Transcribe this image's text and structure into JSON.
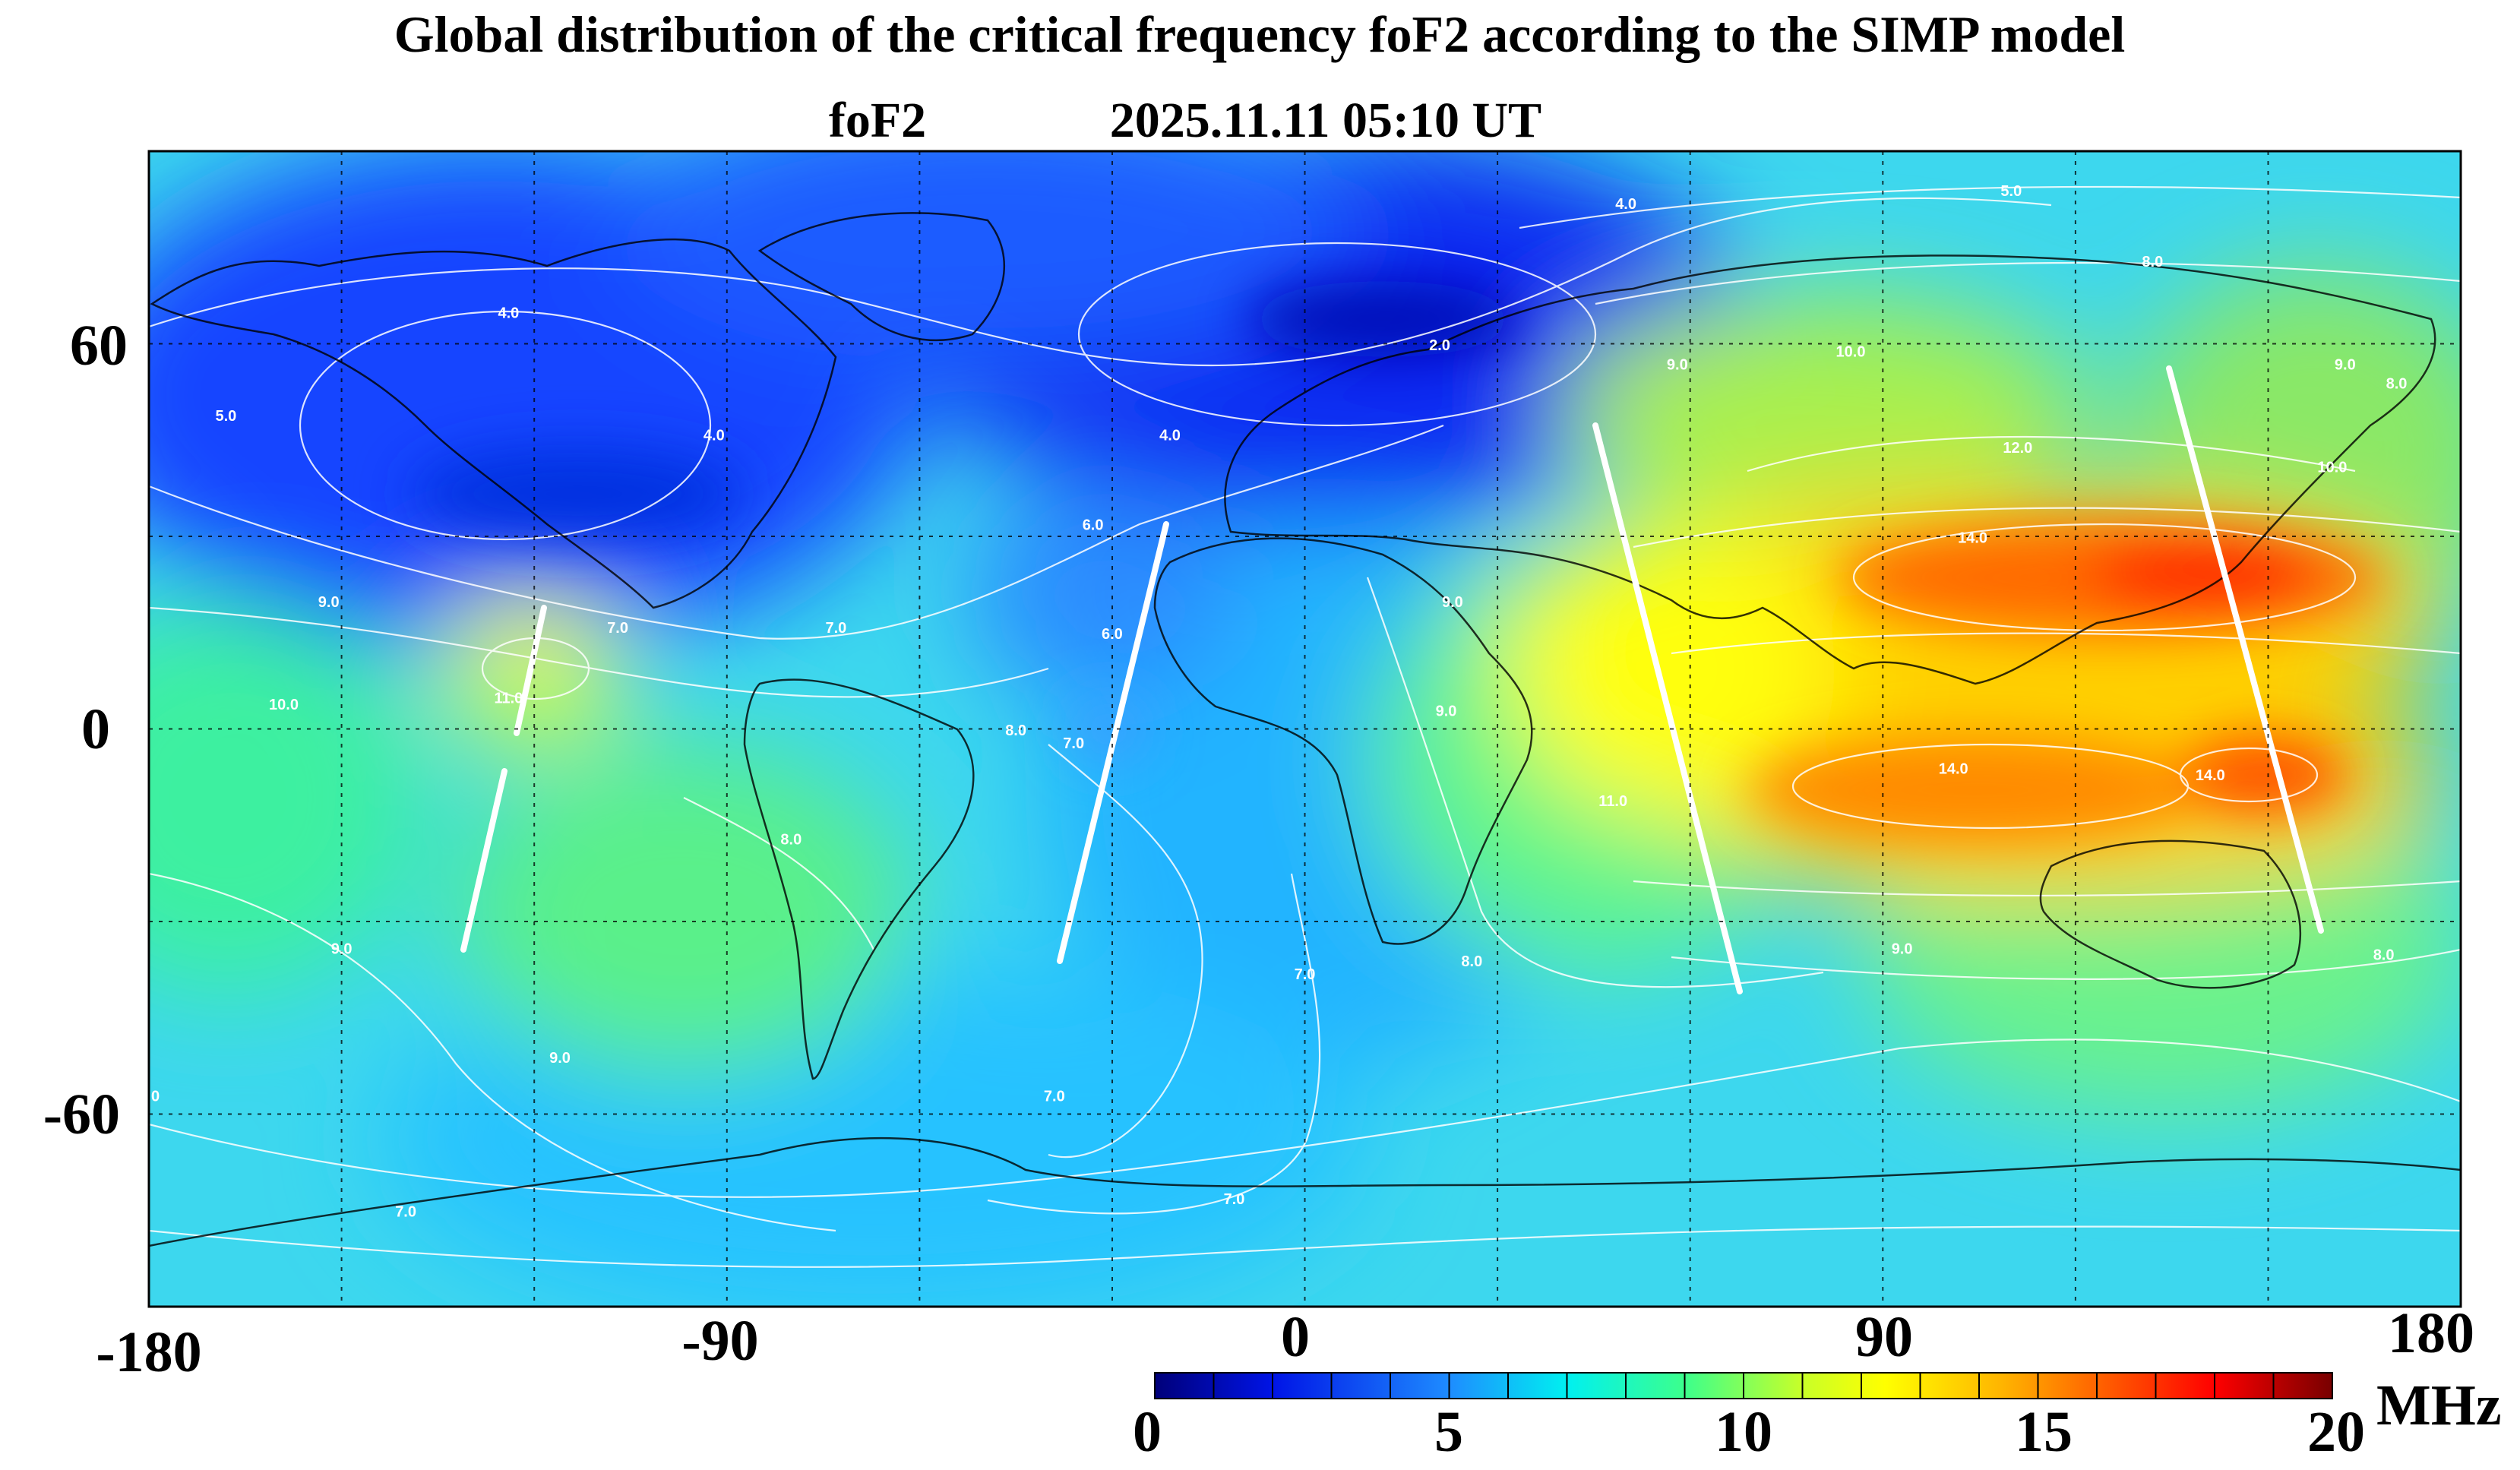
{
  "title": "Global distribution of the critical frequency foF2 according to the SIMP model",
  "subtitle_param": "foF2",
  "subtitle_time": "2025.11.11 05:10 UT",
  "x_axis": {
    "ticks": [
      "-180",
      "-90",
      "0",
      "90",
      "180"
    ],
    "min": -180,
    "max": 180
  },
  "y_axis": {
    "ticks": [
      "60",
      "0",
      "-60"
    ],
    "min": -90,
    "max": 90
  },
  "grid": true,
  "colorbar": {
    "min": 0,
    "max": 20,
    "ticks": [
      "0",
      "5",
      "10",
      "15",
      "20"
    ],
    "unit": "MHz",
    "colors": [
      "#00007a",
      "#0000c8",
      "#0a28f0",
      "#1e64ff",
      "#2896ff",
      "#14c8ff",
      "#00f0f0",
      "#28ff9c",
      "#78ff50",
      "#c8ff28",
      "#ffff00",
      "#ffd200",
      "#ffa000",
      "#ff6e00",
      "#ff3c00",
      "#ff0000",
      "#d20000",
      "#a00000",
      "#780000"
    ]
  },
  "contour_labels": [
    {
      "text": "4.0",
      "lon": -124,
      "lat": 64
    },
    {
      "text": "5.0",
      "lon": -168,
      "lat": 48
    },
    {
      "text": "4.0",
      "lon": -92,
      "lat": 45
    },
    {
      "text": "4.0",
      "lon": 50,
      "lat": 81
    },
    {
      "text": "5.0",
      "lon": 110,
      "lat": 83
    },
    {
      "text": "2.0",
      "lon": 21,
      "lat": 59
    },
    {
      "text": "4.0",
      "lon": -21,
      "lat": 45
    },
    {
      "text": "9.0",
      "lon": 58,
      "lat": 56
    },
    {
      "text": "10.0",
      "lon": 85,
      "lat": 58
    },
    {
      "text": "8.0",
      "lon": 132,
      "lat": 72
    },
    {
      "text": "9.0",
      "lon": 162,
      "lat": 56
    },
    {
      "text": "8.0",
      "lon": 170,
      "lat": 53
    },
    {
      "text": "12.0",
      "lon": 111,
      "lat": 43
    },
    {
      "text": "10.0",
      "lon": 160,
      "lat": 40
    },
    {
      "text": "14.0",
      "lon": 104,
      "lat": 29
    },
    {
      "text": "6.0",
      "lon": -33,
      "lat": 31
    },
    {
      "text": "6.0",
      "lon": -30,
      "lat": 14
    },
    {
      "text": "9.0",
      "lon": -152,
      "lat": 19
    },
    {
      "text": "7.0",
      "lon": -107,
      "lat": 15
    },
    {
      "text": "7.0",
      "lon": -73,
      "lat": 15
    },
    {
      "text": "11.0",
      "lon": -124,
      "lat": 4
    },
    {
      "text": "10.0",
      "lon": -159,
      "lat": 3
    },
    {
      "text": "7.0",
      "lon": -36,
      "lat": -3
    },
    {
      "text": "8.0",
      "lon": -45,
      "lat": -1
    },
    {
      "text": "9.0",
      "lon": 23,
      "lat": 19
    },
    {
      "text": "9.0",
      "lon": 22,
      "lat": 2
    },
    {
      "text": "8.0",
      "lon": -80,
      "lat": -18
    },
    {
      "text": "11.0",
      "lon": 48,
      "lat": -12
    },
    {
      "text": "14.0",
      "lon": 101,
      "lat": -7
    },
    {
      "text": "14.0",
      "lon": 141,
      "lat": -8
    },
    {
      "text": "9.0",
      "lon": -150,
      "lat": -35
    },
    {
      "text": "9.0",
      "lon": 93,
      "lat": -35
    },
    {
      "text": "8.0",
      "lon": 26,
      "lat": -37
    },
    {
      "text": "7.0",
      "lon": 0,
      "lat": -39
    },
    {
      "text": "8.0",
      "lon": 168,
      "lat": -36
    },
    {
      "text": "9.0",
      "lon": -116,
      "lat": -52
    },
    {
      "text": "7.0",
      "lon": -39,
      "lat": -58
    },
    {
      "text": "7.0",
      "lon": -11,
      "lat": -74
    },
    {
      "text": "7.0",
      "lon": -140,
      "lat": -76
    },
    {
      "text": "0",
      "lon": -179,
      "lat": -58
    }
  ]
}
